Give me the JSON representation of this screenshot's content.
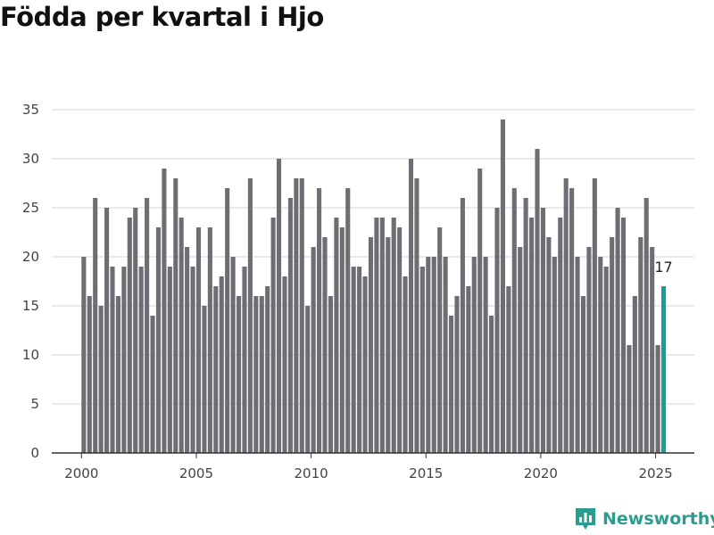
{
  "chart_data": {
    "type": "bar",
    "title": "Födda per kvartal i Hjo",
    "xlabel": "",
    "ylabel": "",
    "ylim": [
      0,
      35
    ],
    "yticks": [
      0,
      5,
      10,
      15,
      20,
      25,
      30,
      35
    ],
    "xticks": [
      2000,
      2005,
      2010,
      2015,
      2020,
      2025
    ],
    "grid": true,
    "start_year": 2000,
    "values": [
      20,
      16,
      26,
      15,
      25,
      19,
      16,
      19,
      24,
      25,
      19,
      26,
      14,
      23,
      29,
      19,
      28,
      24,
      21,
      19,
      23,
      15,
      23,
      17,
      18,
      27,
      20,
      16,
      19,
      28,
      16,
      16,
      17,
      24,
      30,
      18,
      26,
      28,
      28,
      15,
      21,
      27,
      22,
      16,
      24,
      23,
      27,
      19,
      19,
      18,
      22,
      24,
      24,
      22,
      24,
      23,
      18,
      30,
      28,
      19,
      20,
      20,
      23,
      20,
      14,
      16,
      26,
      17,
      20,
      29,
      20,
      14,
      25,
      34,
      17,
      27,
      21,
      26,
      24,
      31,
      25,
      22,
      20,
      24,
      28,
      27,
      20,
      16,
      21,
      28,
      20,
      19,
      22,
      25,
      24,
      11,
      16,
      22,
      26,
      21,
      11,
      17
    ],
    "highlight_label": "17",
    "colors": {
      "bar": "#6e6d73",
      "highlight": "#1a9e96",
      "grid": "#d6d6d6",
      "axis": "#333333"
    }
  },
  "brand": {
    "name": "Newsworthy",
    "color": "#2a9d8f",
    "icon": "bar-chart-icon"
  }
}
